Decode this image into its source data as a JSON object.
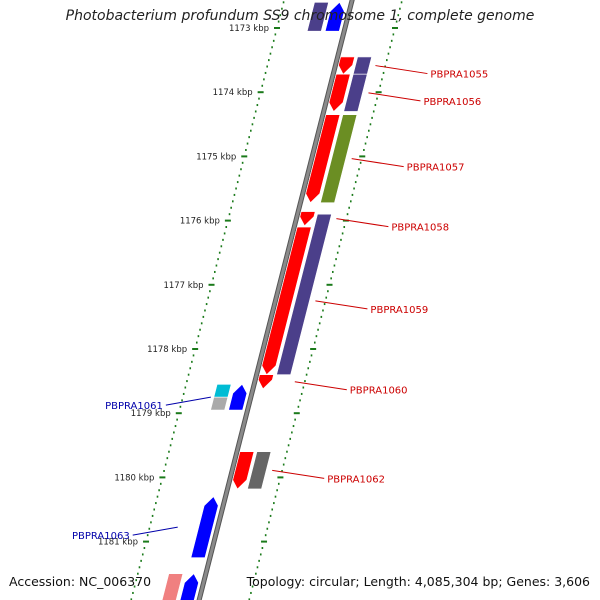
{
  "title": "Photobacterium profundum SS9 chromosome 1, complete genome",
  "footer": {
    "accession": "Accession: NC_006370",
    "topology": "Topology: circular; Length: 4,085,304 bp; Genes: 3,606"
  },
  "colors": {
    "backbone": "#8a8a8a",
    "forward_label": "#cc0000",
    "reverse_label": "#0000aa",
    "tick": "#1a7a1a"
  },
  "scale_labels": [
    {
      "kbp": 1173,
      "label": "1173 kbp"
    },
    {
      "kbp": 1174,
      "label": "1174 kbp"
    },
    {
      "kbp": 1175,
      "label": "1175 kbp"
    },
    {
      "kbp": 1176,
      "label": "1176 kbp"
    },
    {
      "kbp": 1177,
      "label": "1177 kbp"
    },
    {
      "kbp": 1178,
      "label": "1178 kbp"
    },
    {
      "kbp": 1179,
      "label": "1179 kbp"
    },
    {
      "kbp": 1180,
      "label": "1180 kbp"
    },
    {
      "kbp": 1181,
      "label": "1181 kbp"
    }
  ],
  "genes": [
    {
      "label": "PBPRA1055",
      "strand": "+",
      "start_kbp": 1173.45,
      "end_kbp": 1173.72,
      "color": "#ff0000"
    },
    {
      "label": "PBPRA1056",
      "strand": "+",
      "start_kbp": 1173.72,
      "end_kbp": 1174.3,
      "color": "#ff0000"
    },
    {
      "label": "PBPRA1057",
      "strand": "+",
      "start_kbp": 1174.35,
      "end_kbp": 1175.72,
      "color": "#ff0000"
    },
    {
      "label": "PBPRA1058",
      "strand": "+",
      "start_kbp": 1175.86,
      "end_kbp": 1176.08,
      "color": "#ff0000"
    },
    {
      "label": "PBPRA1059",
      "strand": "+",
      "start_kbp": 1176.1,
      "end_kbp": 1178.4,
      "color": "#ff0000"
    },
    {
      "label": "PBPRA1060",
      "strand": "+",
      "start_kbp": 1178.4,
      "end_kbp": 1178.62,
      "color": "#ff0000"
    },
    {
      "label": "PBPRA1061",
      "strand": "-",
      "start_kbp": 1178.55,
      "end_kbp": 1178.95,
      "color": "#0000ff"
    },
    {
      "label": "PBPRA1062",
      "strand": "+",
      "start_kbp": 1179.6,
      "end_kbp": 1180.18,
      "color": "#ff0000"
    },
    {
      "label": "PBPRA1063",
      "strand": "-",
      "start_kbp": 1180.3,
      "end_kbp": 1181.25,
      "color": "#0000ff"
    }
  ],
  "unlabeled_genes": [
    {
      "name": "top-reverse-gene",
      "strand": "-",
      "start_kbp": 1172.6,
      "end_kbp": 1173.05,
      "color": "#0000ff"
    },
    {
      "name": "bottom-reverse-gene",
      "strand": "-",
      "start_kbp": 1181.5,
      "end_kbp": 1182.0,
      "color": "#0000ff"
    }
  ],
  "features": [
    {
      "name": "cog-1055",
      "ring": "outer",
      "start_kbp": 1173.45,
      "end_kbp": 1173.72,
      "color": "#4b3f8a"
    },
    {
      "name": "cog-1056",
      "ring": "outer",
      "start_kbp": 1173.72,
      "end_kbp": 1174.3,
      "color": "#4b3f8a"
    },
    {
      "name": "cog-1057",
      "ring": "outer",
      "start_kbp": 1174.35,
      "end_kbp": 1175.72,
      "color": "#6b8e23"
    },
    {
      "name": "cog-1059",
      "ring": "outer",
      "start_kbp": 1175.9,
      "end_kbp": 1178.4,
      "color": "#4b3f8a"
    },
    {
      "name": "cog-1062",
      "ring": "outer",
      "start_kbp": 1179.6,
      "end_kbp": 1180.18,
      "color": "#666666"
    },
    {
      "name": "cog-1061-a",
      "ring": "inner",
      "start_kbp": 1178.55,
      "end_kbp": 1178.75,
      "color": "#00bcd4"
    },
    {
      "name": "cog-1061-b",
      "ring": "inner",
      "start_kbp": 1178.75,
      "end_kbp": 1178.95,
      "color": "#aaaaaa"
    },
    {
      "name": "cog-top",
      "ring": "inner",
      "start_kbp": 1172.6,
      "end_kbp": 1173.05,
      "color": "#4b3f8a"
    },
    {
      "name": "cog-bottom",
      "ring": "inner",
      "start_kbp": 1181.5,
      "end_kbp": 1182.0,
      "color": "#f08080"
    }
  ]
}
